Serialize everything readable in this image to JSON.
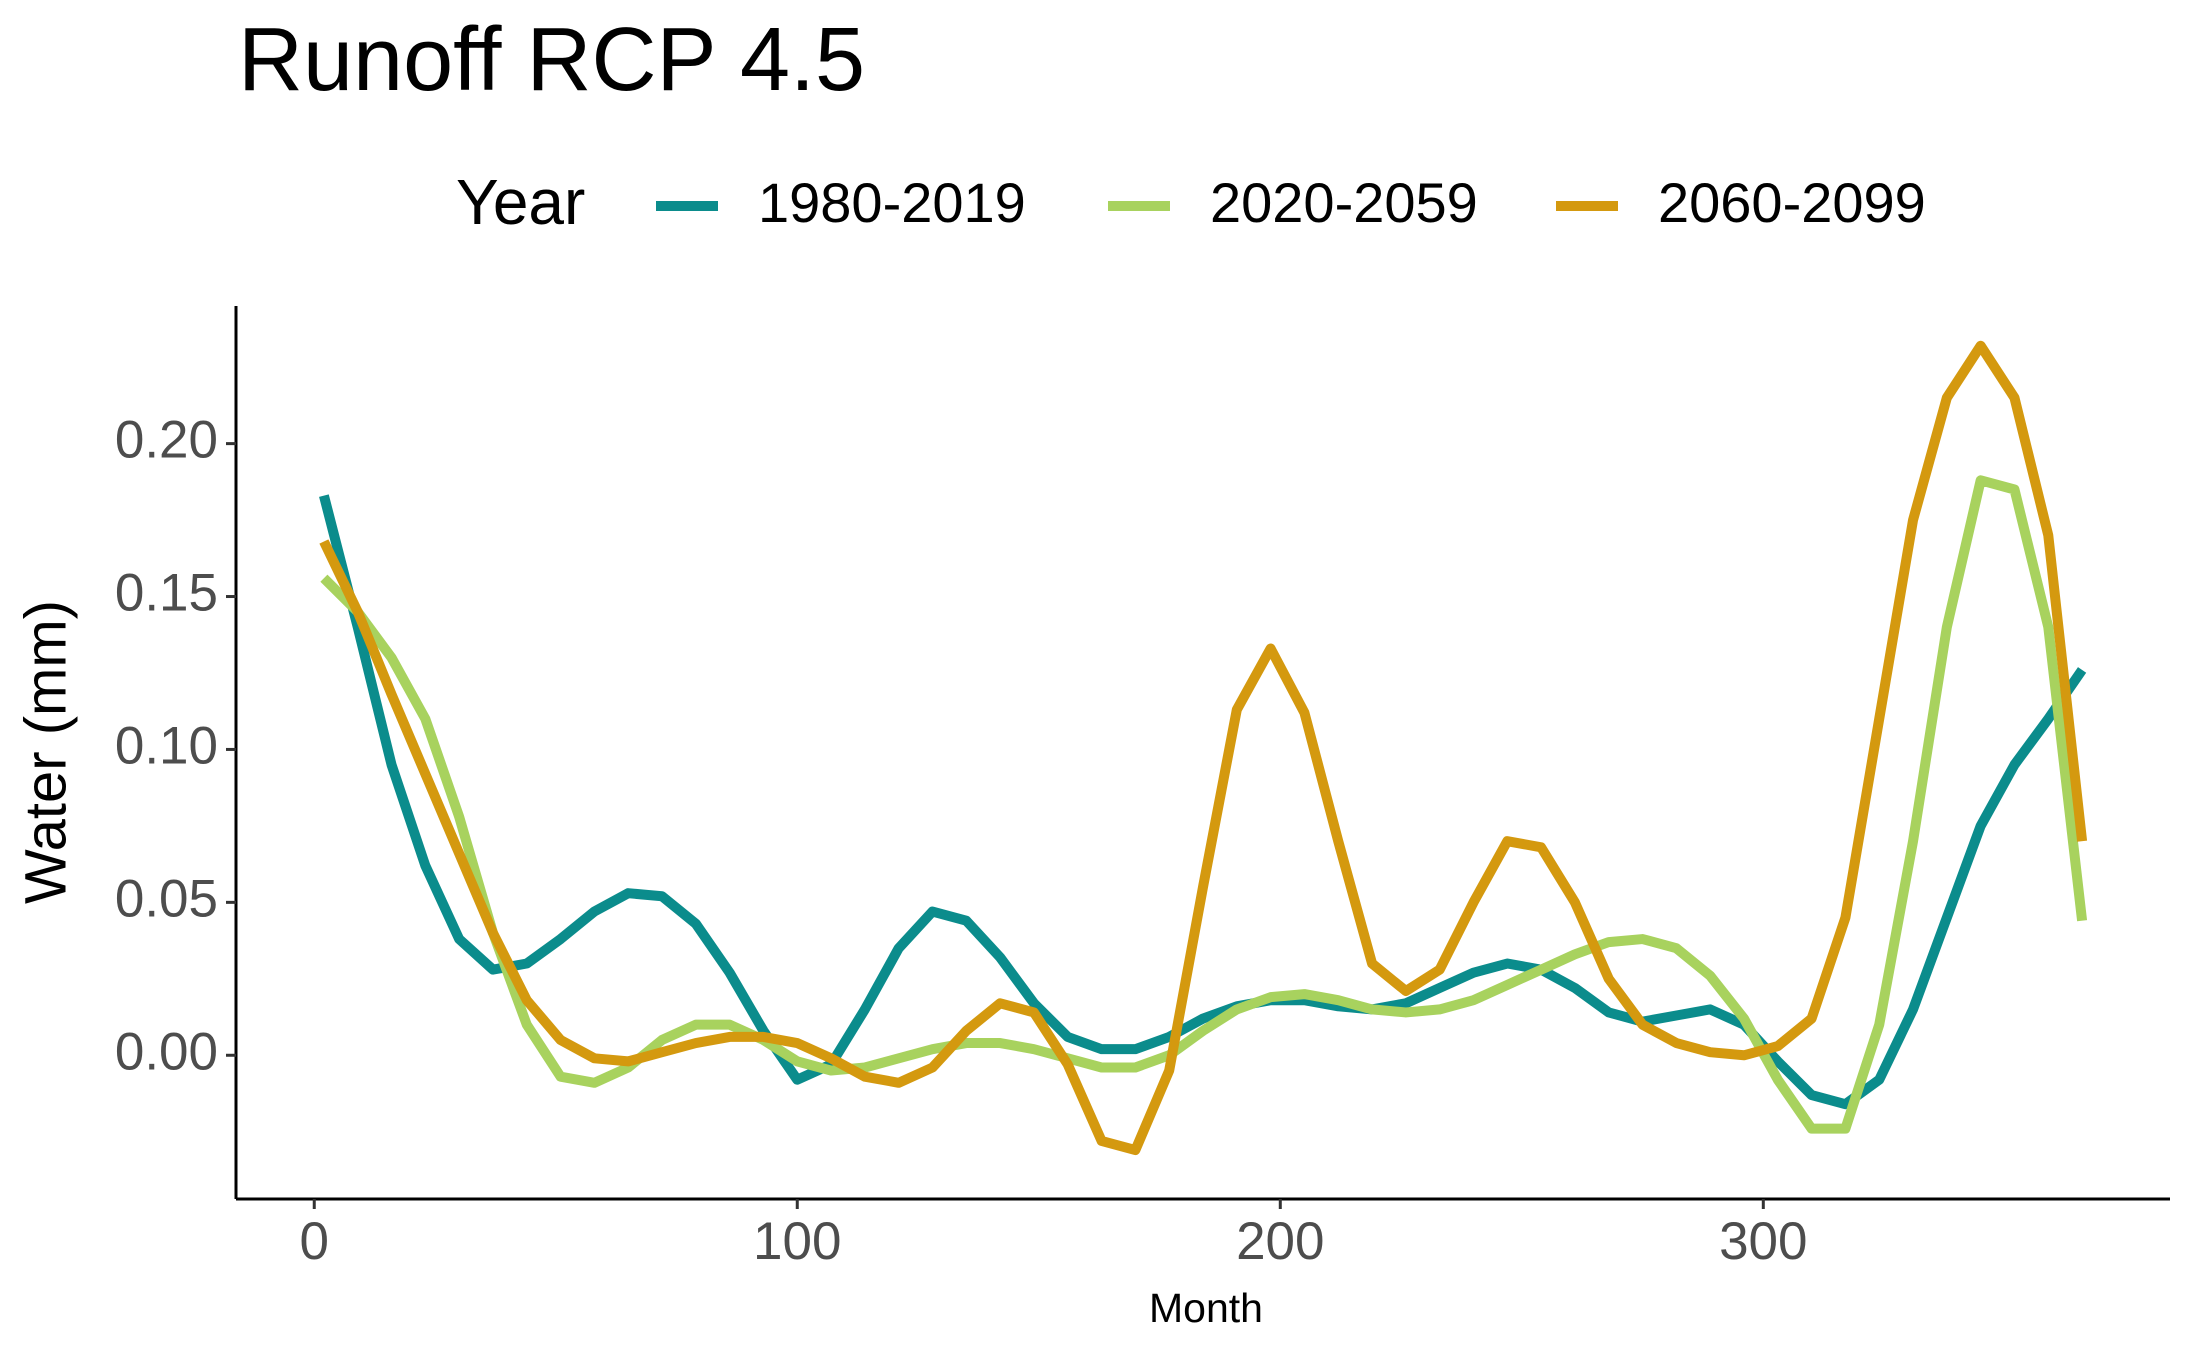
{
  "chart_data": {
    "type": "line",
    "title": "Runoff RCP 4.5",
    "x_label": "Month",
    "y_label": "Water (mm)",
    "legend_title": "Year",
    "x": [
      2,
      9,
      16,
      23,
      30,
      37,
      44,
      51,
      58,
      65,
      72,
      79,
      86,
      93,
      100,
      107,
      114,
      121,
      128,
      135,
      142,
      149,
      156,
      163,
      170,
      177,
      184,
      191,
      198,
      205,
      212,
      219,
      226,
      233,
      240,
      247,
      254,
      261,
      268,
      275,
      282,
      289,
      296,
      303,
      310,
      317,
      324,
      331,
      338,
      345,
      352,
      359,
      366
    ],
    "series": [
      {
        "name": "1980-2019",
        "color": "#0b8c8c",
        "values": [
          0.183,
          0.14,
          0.095,
          0.062,
          0.038,
          0.028,
          0.03,
          0.038,
          0.047,
          0.053,
          0.052,
          0.043,
          0.027,
          0.008,
          -0.008,
          -0.003,
          0.015,
          0.035,
          0.047,
          0.044,
          0.032,
          0.017,
          0.006,
          0.002,
          0.002,
          0.006,
          0.012,
          0.016,
          0.018,
          0.018,
          0.016,
          0.015,
          0.017,
          0.022,
          0.027,
          0.03,
          0.028,
          0.022,
          0.014,
          0.011,
          0.013,
          0.015,
          0.01,
          -0.002,
          -0.013,
          -0.016,
          -0.008,
          0.015,
          0.045,
          0.075,
          0.095,
          0.11,
          0.126
        ]
      },
      {
        "name": "2020-2059",
        "color": "#a8d25e",
        "values": [
          0.156,
          0.145,
          0.13,
          0.11,
          0.078,
          0.04,
          0.01,
          -0.007,
          -0.009,
          -0.004,
          0.005,
          0.01,
          0.01,
          0.005,
          -0.002,
          -0.005,
          -0.004,
          -0.001,
          0.002,
          0.004,
          0.004,
          0.002,
          -0.001,
          -0.004,
          -0.004,
          0.0,
          0.008,
          0.015,
          0.019,
          0.02,
          0.018,
          0.015,
          0.014,
          0.015,
          0.018,
          0.023,
          0.028,
          0.033,
          0.037,
          0.038,
          0.035,
          0.026,
          0.012,
          -0.008,
          -0.024,
          -0.024,
          0.01,
          0.07,
          0.14,
          0.188,
          0.185,
          0.14,
          0.044
        ]
      },
      {
        "name": "2060-2099",
        "color": "#d4990f",
        "values": [
          0.168,
          0.145,
          0.118,
          0.092,
          0.066,
          0.04,
          0.018,
          0.005,
          -0.001,
          -0.002,
          0.001,
          0.004,
          0.006,
          0.006,
          0.004,
          -0.001,
          -0.007,
          -0.009,
          -0.004,
          0.008,
          0.017,
          0.014,
          -0.003,
          -0.028,
          -0.031,
          -0.005,
          0.055,
          0.113,
          0.133,
          0.112,
          0.07,
          0.03,
          0.021,
          0.028,
          0.05,
          0.07,
          0.068,
          0.05,
          0.025,
          0.01,
          0.004,
          0.001,
          0.0,
          0.003,
          0.012,
          0.045,
          0.11,
          0.175,
          0.215,
          0.232,
          0.215,
          0.17,
          0.07
        ]
      }
    ],
    "xlim": [
      -16.2,
      384.2
    ],
    "ylim": [
      -0.047,
      0.245
    ],
    "xticks": [
      0,
      100,
      200,
      300
    ],
    "yticks": [
      {
        "value": 0,
        "label": "0.00"
      },
      {
        "value": 0.05,
        "label": "0.05"
      },
      {
        "value": 0.1,
        "label": "0.10"
      },
      {
        "value": 0.15,
        "label": "0.15"
      },
      {
        "value": 0.2,
        "label": "0.20"
      }
    ],
    "grid": false,
    "legend_position": "top"
  }
}
